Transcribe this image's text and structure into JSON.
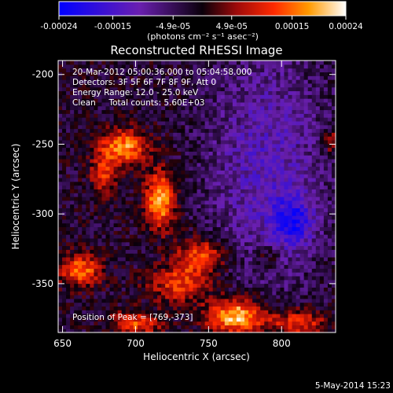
{
  "colorbar": {
    "tick_labels": [
      "-0.00024",
      "-0.00015",
      "-4.9e-05",
      "4.9e-05",
      "0.00015",
      "0.00024"
    ],
    "tick_values": [
      -0.00024,
      -0.00015,
      -4.9e-05,
      4.9e-05,
      0.00015,
      0.00024
    ],
    "min": -0.00024,
    "max": 0.00024,
    "units_label": "(photons cm⁻² s⁻¹ asec⁻²)"
  },
  "footer": {
    "timestamp": "5-May-2014 15:23"
  },
  "chart_data": {
    "type": "heatmap",
    "title": "Reconstructed RHESSI Image",
    "xlabel": "Heliocentric X (arcsec)",
    "ylabel": "Heliocentric Y (arcsec)",
    "xlim": [
      647,
      837
    ],
    "ylim": [
      -385,
      -190
    ],
    "x_ticks": [
      650,
      700,
      750,
      800
    ],
    "x_tick_labels": [
      "650",
      "700",
      "750",
      "800"
    ],
    "y_ticks": [
      -200,
      -250,
      -300,
      -350
    ],
    "y_tick_labels": [
      "-200",
      "-250",
      "-300",
      "-350"
    ],
    "grid": false,
    "colormap": [
      "#0000ff",
      "#6a1fb0",
      "#200020",
      "#9e0a0a",
      "#ff2a00",
      "#ff9a00",
      "#ffee40",
      "#ffffff"
    ],
    "annotations": [
      "20-Mar-2012 05:00:36.000 to 05:04:58.000",
      "Detectors: 3F 5F 6F 7F 8F 9F, Att 0",
      "Energy Range: 12.0 - 25.0 keV",
      "Clean     Total counts: 5.60E+03"
    ],
    "peak_label": "Position of Peak = [769,-373]",
    "peak": [
      769,
      -373
    ],
    "grid_dims": {
      "nx": 70,
      "ny": 72
    },
    "sources": [
      {
        "x": 717,
        "y": -290,
        "sx": 7,
        "sy": 14,
        "amp": 0.00022
      },
      {
        "x": 692,
        "y": -252,
        "sx": 12,
        "sy": 9,
        "amp": 0.00019
      },
      {
        "x": 678,
        "y": -272,
        "sx": 6,
        "sy": 10,
        "amp": 0.00013
      },
      {
        "x": 662,
        "y": -340,
        "sx": 10,
        "sy": 8,
        "amp": 0.00018
      },
      {
        "x": 745,
        "y": -330,
        "sx": 12,
        "sy": 9,
        "amp": 0.00016
      },
      {
        "x": 730,
        "y": -350,
        "sx": 14,
        "sy": 9,
        "amp": 0.00014
      },
      {
        "x": 769,
        "y": -373,
        "sx": 14,
        "sy": 9,
        "amp": 0.00024
      },
      {
        "x": 700,
        "y": -378,
        "sx": 12,
        "sy": 6,
        "amp": 0.00015
      },
      {
        "x": 812,
        "y": -378,
        "sx": 14,
        "sy": 7,
        "amp": 0.00014
      },
      {
        "x": 835,
        "y": -248,
        "sx": 4,
        "sy": 6,
        "amp": 0.00012
      },
      {
        "x": 790,
        "y": -330,
        "sx": 6,
        "sy": 6,
        "amp": 7e-05
      },
      {
        "x": 790,
        "y": -265,
        "sx": 28,
        "sy": 60,
        "amp": -0.0001
      },
      {
        "x": 808,
        "y": -305,
        "sx": 10,
        "sy": 12,
        "amp": -0.00014
      }
    ]
  }
}
